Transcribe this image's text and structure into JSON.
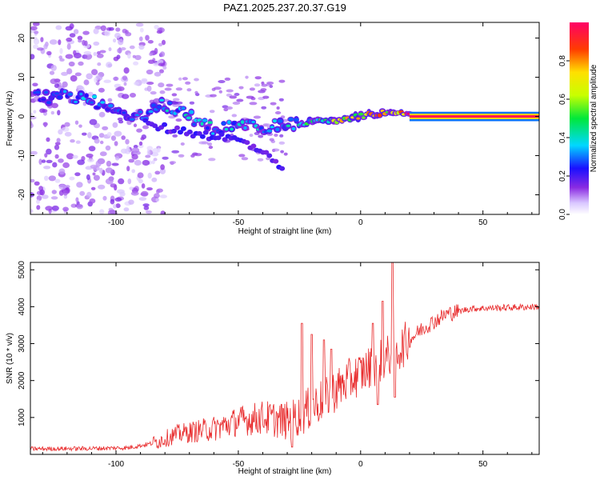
{
  "title": "PAZ1.2025.237.20.37.G19",
  "chart_data": [
    {
      "type": "heatmap",
      "xlabel": "Height of straight line (km)",
      "ylabel": "Frequency (Hz)",
      "xlim": [
        -135,
        73
      ],
      "ylim": [
        -25,
        24
      ],
      "xticks": [
        -100,
        -50,
        0,
        50
      ],
      "yticks": [
        -20,
        -10,
        0,
        10,
        20
      ],
      "xtick_labels": [
        "-100",
        "-50",
        "0",
        "50"
      ],
      "ytick_labels": [
        "-20",
        "-10",
        "0",
        "10",
        "20"
      ],
      "colorbar": {
        "label": "Normalized spectral amplitude",
        "range": [
          0.0,
          1.0
        ],
        "ticks": [
          0.0,
          0.2,
          0.4,
          0.6,
          0.8
        ],
        "tick_labels": [
          "0.0",
          "0.2",
          "0.4",
          "0.6",
          "0.8"
        ],
        "colormap": "rainbow"
      },
      "ridge": [
        {
          "x": -130,
          "f": 5,
          "a": 0.3
        },
        {
          "x": -120,
          "f": 5,
          "a": 0.35
        },
        {
          "x": -110,
          "f": 4,
          "a": 0.35
        },
        {
          "x": -100,
          "f": 1,
          "a": 0.3
        },
        {
          "x": -90,
          "f": 0.5,
          "a": 0.35
        },
        {
          "x": -80,
          "f": 3,
          "a": 0.4
        },
        {
          "x": -70,
          "f": 0,
          "a": 0.4
        },
        {
          "x": -60,
          "f": -3,
          "a": 0.4
        },
        {
          "x": -50,
          "f": -2,
          "a": 0.38
        },
        {
          "x": -40,
          "f": -3,
          "a": 0.38
        },
        {
          "x": -30,
          "f": -2,
          "a": 0.4
        },
        {
          "x": -20,
          "f": -1.5,
          "a": 0.5
        },
        {
          "x": -10,
          "f": -1,
          "a": 0.7
        },
        {
          "x": 0,
          "f": 0,
          "a": 0.8
        },
        {
          "x": 10,
          "f": 1,
          "a": 0.85
        },
        {
          "x": 20,
          "f": 0.5,
          "a": 0.95
        },
        {
          "x": 40,
          "f": 0,
          "a": 1.0
        },
        {
          "x": 73,
          "f": 0,
          "a": 1.0
        }
      ],
      "lower_branch": [
        {
          "x": -88,
          "f": -2
        },
        {
          "x": -80,
          "f": -3
        },
        {
          "x": -70,
          "f": -4
        },
        {
          "x": -60,
          "f": -5
        },
        {
          "x": -50,
          "f": -6
        },
        {
          "x": -40,
          "f": -9
        },
        {
          "x": -33,
          "f": -13.5
        }
      ]
    },
    {
      "type": "line",
      "xlabel": "Height of straight line (km)",
      "ylabel": "SNR (10 * v/v)",
      "xlim": [
        -135,
        73
      ],
      "ylim": [
        0,
        5200
      ],
      "xticks": [
        -100,
        -50,
        0,
        50
      ],
      "yticks": [
        1000,
        2000,
        3000,
        4000,
        5000
      ],
      "xtick_labels": [
        "-100",
        "-50",
        "0",
        "50"
      ],
      "ytick_labels": [
        "1000",
        "2000",
        "3000",
        "4000",
        "5000"
      ],
      "color": "#e8292a",
      "trend": [
        {
          "x": -135,
          "y": 150
        },
        {
          "x": -110,
          "y": 160
        },
        {
          "x": -95,
          "y": 180
        },
        {
          "x": -85,
          "y": 300
        },
        {
          "x": -75,
          "y": 550
        },
        {
          "x": -60,
          "y": 700
        },
        {
          "x": -50,
          "y": 900
        },
        {
          "x": -40,
          "y": 1000
        },
        {
          "x": -30,
          "y": 900
        },
        {
          "x": -25,
          "y": 1050
        },
        {
          "x": -15,
          "y": 1500
        },
        {
          "x": -5,
          "y": 2000
        },
        {
          "x": 5,
          "y": 2400
        },
        {
          "x": 15,
          "y": 2800
        },
        {
          "x": 25,
          "y": 3400
        },
        {
          "x": 35,
          "y": 3800
        },
        {
          "x": 45,
          "y": 3950
        },
        {
          "x": 73,
          "y": 4000
        }
      ],
      "spikes": [
        {
          "x": -24,
          "y": 3550
        },
        {
          "x": -20,
          "y": 3250
        },
        {
          "x": -15,
          "y": 3100
        },
        {
          "x": -12,
          "y": 2850
        },
        {
          "x": 5,
          "y": 3550
        },
        {
          "x": 9,
          "y": 4150
        },
        {
          "x": 13,
          "y": 5200
        }
      ],
      "dips": [
        {
          "x": -28,
          "y": 200
        },
        {
          "x": 7,
          "y": 1350
        },
        {
          "x": 14,
          "y": 1550
        }
      ]
    }
  ]
}
